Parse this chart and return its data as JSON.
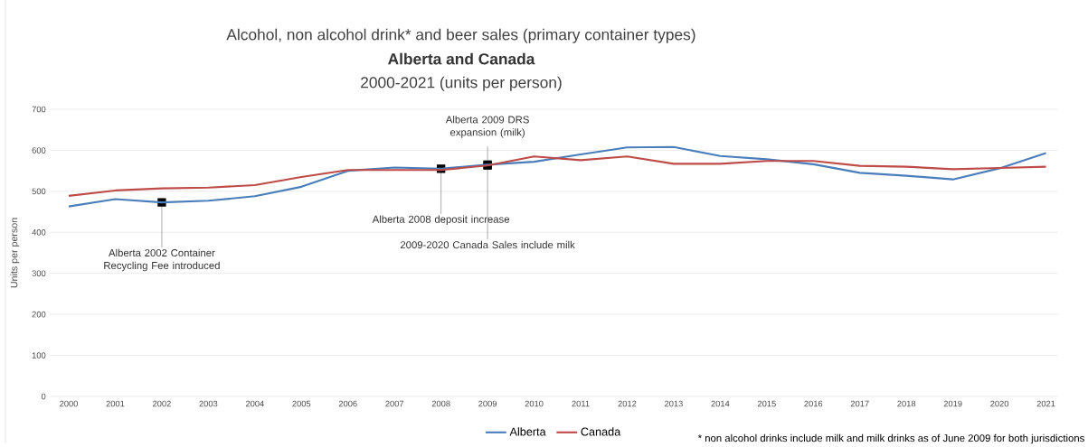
{
  "chart_data": {
    "type": "line",
    "title": "Alcohol, non alcohol drink* and beer sales (primary container types)",
    "subtitle": "Alberta and Canada",
    "ylabel": "Units per person",
    "categories": [
      "2000",
      "2001",
      "2002",
      "2003",
      "2004",
      "2005",
      "2006",
      "2007",
      "2008",
      "2009",
      "2010",
      "2011",
      "2012",
      "2013",
      "2014",
      "2015",
      "2016",
      "2017",
      "2018",
      "2019",
      "2020",
      "2021"
    ],
    "series": [
      {
        "name": "Alberta",
        "color": "#4a7ebb",
        "values": [
          463,
          481,
          473,
          477,
          488,
          511,
          550,
          558,
          555,
          565,
          572,
          590,
          607,
          608,
          586,
          578,
          566,
          545,
          538,
          529,
          556,
          593
        ]
      },
      {
        "name": "Canada",
        "color": "#be4b48",
        "values": [
          489,
          502,
          507,
          509,
          515,
          535,
          552,
          552,
          552,
          563,
          585,
          576,
          585,
          567,
          567,
          574,
          574,
          562,
          560,
          554,
          557,
          560
        ]
      }
    ],
    "ylim": [
      0,
      700
    ],
    "yticks": [
      0,
      100,
      200,
      300,
      400,
      500,
      600,
      700
    ],
    "grid": "y",
    "legend": "bottom",
    "marker": "none",
    "line_style": "solid",
    "annotations": [
      "2000-2021 (units per person)",
      {
        "text": "Alberta 2002 Container Recycling Fee introduced",
        "x": "2002",
        "y": 473
      },
      {
        "text": "Alberta 2008 deposit increase",
        "x": "2008",
        "y": 555
      },
      {
        "text": "Alberta 2009 DRS expansion (milk)",
        "x": "2009",
        "y": 565
      },
      {
        "text": "2009-2020 Canada Sales include milk",
        "x": "2009",
        "y": 563
      },
      "* non alcohol drinks include milk and milk drinks as of June 2009 for both jurisdictions"
    ]
  }
}
